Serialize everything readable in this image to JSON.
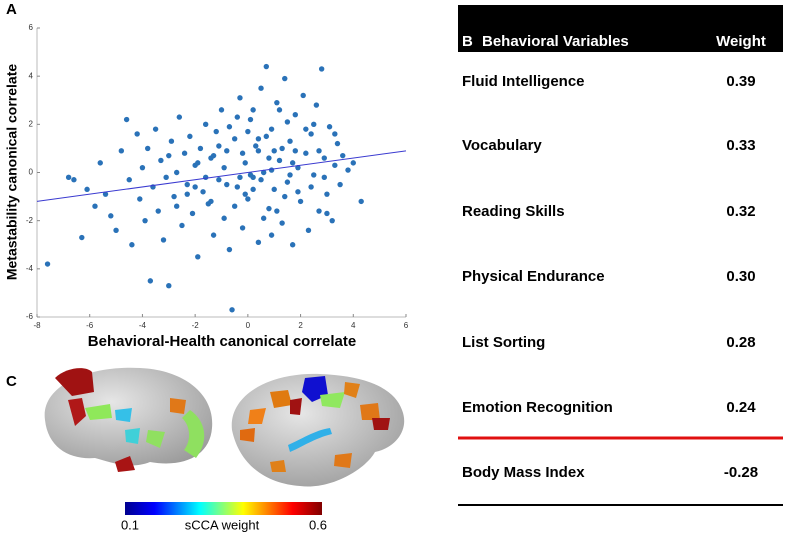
{
  "panels": [
    "A",
    "B",
    "C"
  ],
  "chart_data": {
    "type": "scatter",
    "xlabel": "Behavioral-Health canonical correlate",
    "ylabel": "Metastability canonical correlate",
    "xlim": [
      -8,
      6
    ],
    "xticks": [
      -8,
      -6,
      -4,
      -2,
      0,
      2,
      4,
      6
    ],
    "ylim": [
      -6,
      6
    ],
    "yticks": [
      -6,
      -4,
      -2,
      0,
      2,
      4,
      6
    ],
    "color": "#2a72b8",
    "fit_line": {
      "color": "#3a3ad0",
      "x": [
        -8,
        6
      ],
      "y": [
        -1.2,
        0.9
      ]
    },
    "x": [
      -7.6,
      -6.8,
      -6.6,
      -6.3,
      -6.1,
      -5.8,
      -5.6,
      -5.4,
      -5.2,
      -5.0,
      -4.8,
      -4.6,
      -4.5,
      -4.4,
      -4.2,
      -4.1,
      -4.0,
      -3.9,
      -3.8,
      -3.7,
      -3.6,
      -3.5,
      -3.4,
      -3.3,
      -3.2,
      -3.1,
      -3.0,
      -2.9,
      -2.8,
      -2.7,
      -2.6,
      -2.5,
      -2.4,
      -2.3,
      -2.2,
      -2.1,
      -2.0,
      -1.9,
      -1.8,
      -1.7,
      -1.6,
      -1.5,
      -1.4,
      -1.3,
      -1.2,
      -1.1,
      -1.0,
      -0.9,
      -0.8,
      -0.7,
      -0.6,
      -0.5,
      -0.4,
      -0.3,
      -0.2,
      -0.1,
      0.0,
      0.1,
      0.2,
      0.3,
      0.4,
      0.5,
      0.6,
      0.7,
      0.8,
      0.9,
      1.0,
      1.1,
      1.2,
      1.3,
      1.4,
      1.5,
      1.6,
      1.7,
      1.8,
      1.9,
      2.0,
      2.1,
      2.2,
      2.3,
      2.4,
      2.5,
      2.6,
      2.7,
      2.8,
      2.9,
      3.0,
      3.1,
      3.2,
      3.3,
      3.4,
      3.5,
      3.6,
      3.8,
      4.0,
      4.3,
      -0.2,
      0.4,
      0.9,
      1.3,
      -1.6,
      -0.9,
      0.2,
      0.7,
      1.8,
      -0.5,
      2.4,
      -2.7,
      0.0,
      1.1,
      -1.1,
      0.5,
      1.5,
      -0.3,
      2.9,
      -1.9,
      0.8,
      1.9,
      -0.7,
      0.2,
      1.6,
      -2.3,
      3.3,
      -1.4,
      0.6,
      1.2,
      -0.1,
      2.2,
      -3.0,
      0.4,
      1.0,
      -0.8,
      2.7,
      -1.3,
      1.7,
      0.1,
      -2.0,
      3.0,
      0.9,
      -0.4,
      1.4,
      2.5
    ],
    "y": [
      -3.8,
      -0.2,
      -0.3,
      -2.7,
      -0.7,
      -1.4,
      0.4,
      -0.9,
      -1.8,
      -2.4,
      0.9,
      2.2,
      -0.3,
      -3.0,
      1.6,
      -1.1,
      0.2,
      -2.0,
      1.0,
      -4.5,
      -0.6,
      1.8,
      -1.6,
      0.5,
      -2.8,
      -0.2,
      -4.7,
      1.3,
      -1.0,
      0.0,
      2.3,
      -2.2,
      0.8,
      -0.5,
      1.5,
      -1.7,
      0.3,
      -3.5,
      1.0,
      -0.8,
      2.0,
      -1.3,
      0.6,
      -2.6,
      1.7,
      -0.3,
      2.6,
      -1.9,
      0.9,
      -3.2,
      -5.7,
      1.4,
      -0.6,
      3.1,
      -2.3,
      0.4,
      -1.1,
      2.2,
      -0.2,
      1.1,
      -2.9,
      3.5,
      0.0,
      4.4,
      -1.5,
      1.8,
      -0.7,
      2.9,
      0.5,
      -2.1,
      3.9,
      -0.4,
      1.3,
      -3.0,
      2.4,
      0.2,
      -1.2,
      3.2,
      0.8,
      -2.4,
      1.6,
      -0.1,
      2.8,
      -1.6,
      4.3,
      0.6,
      -0.9,
      1.9,
      -2.0,
      0.3,
      1.2,
      -0.5,
      0.7,
      0.1,
      0.4,
      -1.2,
      0.8,
      0.9,
      0.1,
      1.0,
      -0.2,
      0.2,
      -0.7,
      1.5,
      0.9,
      -1.4,
      -0.6,
      -1.4,
      1.7,
      -1.6,
      1.1,
      -0.3,
      2.1,
      -0.2,
      -0.2,
      0.4,
      0.6,
      -0.8,
      1.9,
      2.6,
      -0.1,
      -0.9,
      1.6,
      -1.2,
      -1.9,
      2.6,
      -0.9,
      1.8,
      0.7,
      1.4,
      0.9,
      -0.5,
      0.9,
      0.7,
      0.4,
      -0.1,
      -0.6,
      -1.7,
      -2.6,
      2.3,
      -1.0,
      2.0
    ]
  },
  "table": {
    "header": [
      "Behavioral Variables",
      "Weight"
    ],
    "rows": [
      [
        "Fluid Intelligence",
        "0.39"
      ],
      [
        "Vocabulary",
        "0.33"
      ],
      [
        "Reading Skills",
        "0.32"
      ],
      [
        "Physical Endurance",
        "0.30"
      ],
      [
        "List Sorting",
        "0.28"
      ],
      [
        "Emotion Recognition",
        "0.24"
      ],
      [
        "Body Mass Index",
        "-0.28"
      ]
    ]
  },
  "colorbar": {
    "min": 0.1,
    "max": 0.6,
    "label": "sCCA weight"
  }
}
